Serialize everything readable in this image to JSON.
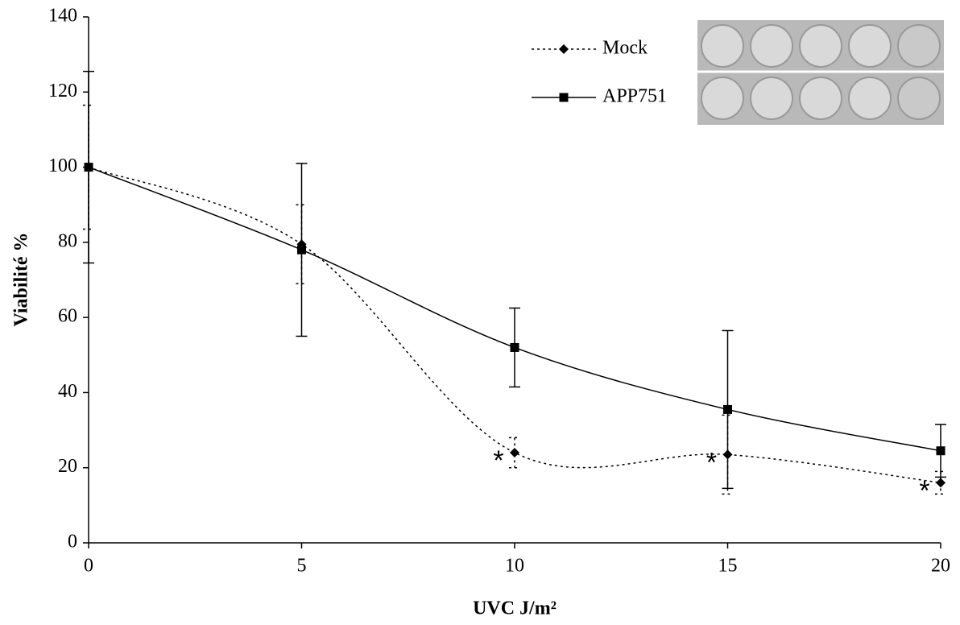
{
  "chart_data": {
    "type": "line",
    "x_label": "UVC J/m²",
    "y_label": "Viabilité %",
    "x": [
      0,
      5,
      10,
      15,
      20
    ],
    "series": [
      {
        "name": "Mock",
        "color": "#000000",
        "line": "dotted",
        "marker": "diamond",
        "values": [
          100,
          79.5,
          24,
          23.5,
          16
        ],
        "errors": [
          16.5,
          10.5,
          4,
          10.5,
          3
        ]
      },
      {
        "name": "APP751",
        "color": "#000000",
        "line": "solid",
        "marker": "square",
        "values": [
          100,
          78,
          52,
          35.5,
          24.5
        ],
        "errors": [
          25.5,
          23,
          10.5,
          21,
          7
        ]
      }
    ],
    "annotations": [
      {
        "text": "*",
        "x": 10
      },
      {
        "text": "*",
        "x": 15
      },
      {
        "text": "*",
        "x": 20
      }
    ],
    "xlim": [
      0,
      20
    ],
    "xticks": [
      0,
      5,
      10,
      15,
      20
    ],
    "ylim": [
      0,
      140
    ],
    "yticks": [
      0,
      20,
      40,
      60,
      80,
      100,
      120,
      140
    ],
    "grid": false,
    "smooth": true
  }
}
